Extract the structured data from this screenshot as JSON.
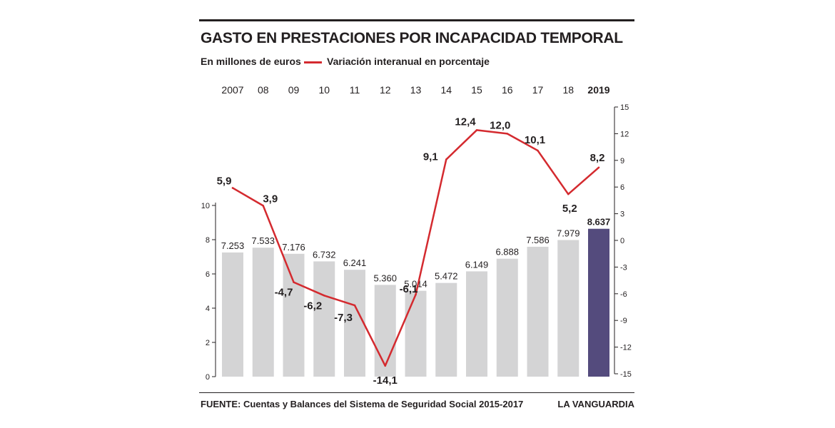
{
  "header": {
    "title": "GASTO EN PRESTACIONES POR INCAPACIDAD TEMPORAL",
    "legend_bars": "En millones de euros",
    "legend_line": "Variación interanual en porcentaje"
  },
  "footer": {
    "source": "FUENTE: Cuentas y Balances del Sistema de Seguridad Social 2015-2017",
    "brand": "LA VANGUARDIA"
  },
  "colors": {
    "bar": "#d4d4d5",
    "bar_highlight": "#544b7d",
    "line": "#d42a2f",
    "text": "#231f20",
    "axis": "#231f20"
  },
  "chart_data": {
    "type": "bar",
    "categories": [
      "2007",
      "08",
      "09",
      "10",
      "11",
      "12",
      "13",
      "14",
      "15",
      "16",
      "17",
      "18",
      "2019"
    ],
    "highlight_category": "2019",
    "series": [
      {
        "type": "bar",
        "axis": "left",
        "values": [
          7253,
          7533,
          7176,
          6732,
          6241,
          5360,
          5014,
          5472,
          6149,
          6888,
          7586,
          7979,
          8637
        ],
        "labels": [
          "7.253",
          "7.533",
          "7.176",
          "6.732",
          "6.241",
          "5.360",
          "5.014",
          "5.472",
          "6.149",
          "6.888",
          "7.586",
          "7.979",
          "8.637"
        ]
      },
      {
        "type": "line",
        "axis": "right",
        "values": [
          5.9,
          3.9,
          -4.7,
          -6.2,
          -7.3,
          -14.1,
          -6.1,
          9.1,
          12.4,
          12.0,
          10.1,
          5.2,
          8.2
        ],
        "labels": [
          "5,9",
          "3,9",
          "-4,7",
          "-6,2",
          "-7,3",
          "-14,1",
          "-6,1",
          "9,1",
          "12,4",
          "12,0",
          "10,1",
          "5,2",
          "8,2"
        ]
      }
    ],
    "y_left": {
      "ticks": [
        "0",
        "2",
        "4",
        "6",
        "8",
        "10"
      ],
      "range": [
        0,
        10
      ]
    },
    "y_right": {
      "ticks": [
        "15",
        "12",
        "9",
        "6",
        "3",
        "0",
        "-3",
        "-6",
        "-9",
        "-12",
        "-15"
      ],
      "range": [
        -15,
        15
      ]
    },
    "legend_placement": "top-left",
    "grid": false
  }
}
